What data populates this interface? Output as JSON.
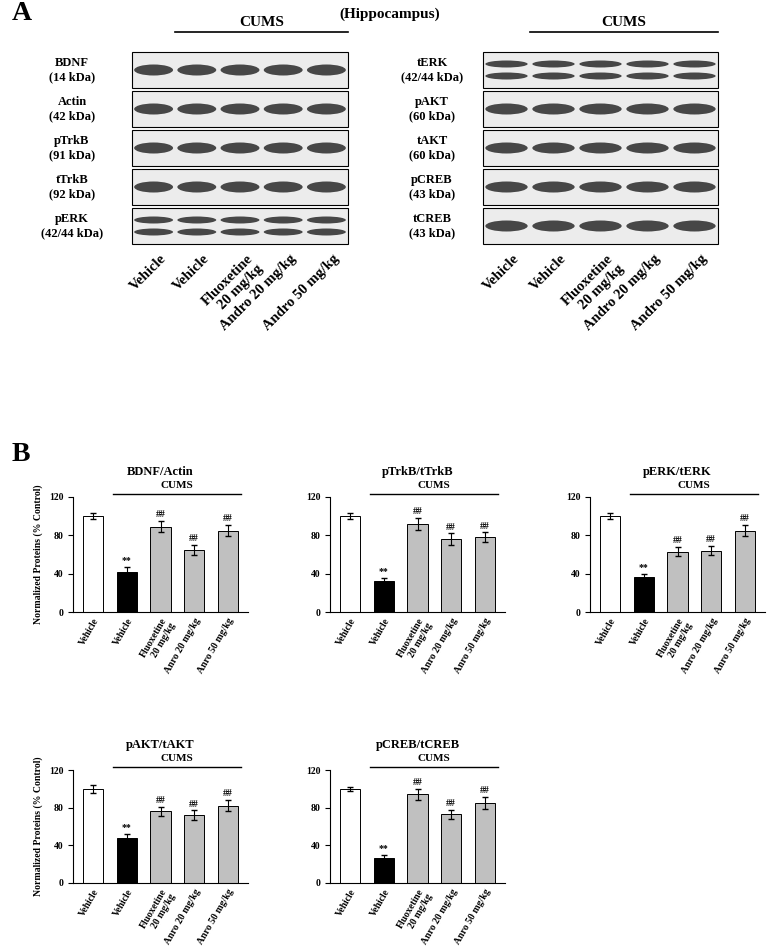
{
  "panel_labels": [
    "A",
    "B"
  ],
  "blots": {
    "region": "(Hippocampus)",
    "group_label": "CUMS",
    "lanes": [
      "Vehicle",
      "Vehicle",
      "Fluoxetine\n20 mg/kg",
      "Andro 20 mg/kg",
      "Andro 50 mg/kg"
    ],
    "left": [
      {
        "name": "BDNF",
        "size": "(14 kDa)"
      },
      {
        "name": "Actin",
        "size": "(42 kDa)"
      },
      {
        "name": "pTrkB",
        "size": "(91 kDa)"
      },
      {
        "name": "tTrkB",
        "size": "(92 kDa)"
      },
      {
        "name": "pERK",
        "size": "(42/44 kDa)"
      }
    ],
    "right": [
      {
        "name": "tERK",
        "size": "(42/44 kDa)"
      },
      {
        "name": "pAKT",
        "size": "(60 kDa)"
      },
      {
        "name": "tAKT",
        "size": "(60 kDa)"
      },
      {
        "name": "pCREB",
        "size": "(43 kDa)"
      },
      {
        "name": "tCREB",
        "size": "(43 kDa)"
      }
    ]
  },
  "chart_data": [
    {
      "type": "bar",
      "title": "BDNF/Actin",
      "ylabel": "Normalized Proteins (% Control)",
      "group_label": "CUMS",
      "categories": [
        "Vehicle",
        "Vehicle",
        "Fluoxetine\n20 mg/kg",
        "Anro 20 mg/kg",
        "Anro 50 mg/kg"
      ],
      "values": [
        100,
        42,
        89,
        65,
        85
      ],
      "errors": [
        3,
        5,
        6,
        5,
        6
      ],
      "annotations": [
        null,
        "**",
        "##",
        "##",
        "##"
      ],
      "colors": [
        "#ffffff",
        "#000000",
        "#c0c0c0",
        "#c0c0c0",
        "#c0c0c0"
      ],
      "ylim": [
        0,
        120
      ],
      "yticks": [
        0,
        40,
        80,
        120
      ]
    },
    {
      "type": "bar",
      "title": "pTrkB/tTrkB",
      "group_label": "CUMS",
      "categories": [
        "Vehicle",
        "Vehicle",
        "Fluoxetine\n20 mg/kg",
        "Anro 20 mg/kg",
        "Anro 50 mg/kg"
      ],
      "values": [
        100,
        32,
        92,
        76,
        78
      ],
      "errors": [
        3,
        4,
        6,
        6,
        5
      ],
      "annotations": [
        null,
        "**",
        "##",
        "##",
        "##"
      ],
      "colors": [
        "#ffffff",
        "#000000",
        "#c0c0c0",
        "#c0c0c0",
        "#c0c0c0"
      ],
      "ylim": [
        0,
        120
      ],
      "yticks": [
        0,
        40,
        80,
        120
      ]
    },
    {
      "type": "bar",
      "title": "pERK/tERK",
      "group_label": "CUMS",
      "categories": [
        "Vehicle",
        "Vehicle",
        "Fluoxetine\n20 mg/kg",
        "Anro 20 mg/kg",
        "Anro 50 mg/kg"
      ],
      "values": [
        100,
        37,
        63,
        64,
        85
      ],
      "errors": [
        3,
        3,
        5,
        5,
        6
      ],
      "annotations": [
        null,
        "**",
        "##",
        "##",
        "##"
      ],
      "colors": [
        "#ffffff",
        "#000000",
        "#c0c0c0",
        "#c0c0c0",
        "#c0c0c0"
      ],
      "ylim": [
        0,
        120
      ],
      "yticks": [
        0,
        40,
        80,
        120
      ]
    },
    {
      "type": "bar",
      "title": "pAKT/tAKT",
      "ylabel": "Normalized Proteins (% Control)",
      "group_label": "CUMS",
      "categories": [
        "Vehicle",
        "Vehicle",
        "Fluoxetine\n20 mg/kg",
        "Anro 20 mg/kg",
        "Anro 50 mg/kg"
      ],
      "values": [
        100,
        48,
        76,
        72,
        82
      ],
      "errors": [
        4,
        4,
        5,
        5,
        6
      ],
      "annotations": [
        null,
        "**",
        "##",
        "##",
        "##"
      ],
      "colors": [
        "#ffffff",
        "#000000",
        "#c0c0c0",
        "#c0c0c0",
        "#c0c0c0"
      ],
      "ylim": [
        0,
        120
      ],
      "yticks": [
        0,
        40,
        80,
        120
      ]
    },
    {
      "type": "bar",
      "title": "pCREB/tCREB",
      "group_label": "CUMS",
      "categories": [
        "Vehicle",
        "Vehicle",
        "Fluoxetine\n20 mg/kg",
        "Anro 20 mg/kg",
        "Anro 50 mg/kg"
      ],
      "values": [
        100,
        27,
        94,
        73,
        85
      ],
      "errors": [
        2,
        3,
        6,
        5,
        6
      ],
      "annotations": [
        null,
        "**",
        "##",
        "##",
        "##"
      ],
      "colors": [
        "#ffffff",
        "#000000",
        "#c0c0c0",
        "#c0c0c0",
        "#c0c0c0"
      ],
      "ylim": [
        0,
        120
      ],
      "yticks": [
        0,
        40,
        80,
        120
      ]
    }
  ]
}
